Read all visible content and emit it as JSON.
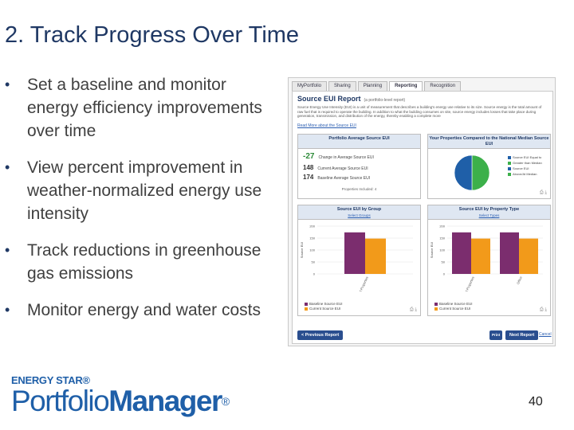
{
  "slide": {
    "title": "2. Track Progress Over Time",
    "bullets": [
      "Set a baseline and monitor energy efficiency improvements over time",
      "View percent improvement in weather-normalized energy use intensity",
      "Track reductions in greenhouse gas emissions",
      "Monitor energy and water costs"
    ],
    "bullet_char": "•",
    "page_number": "40"
  },
  "logo": {
    "top": "ENERGY STAR®",
    "main_a": "Portfolio",
    "main_b": "Manager",
    "reg": "®"
  },
  "screenshot": {
    "tabs": [
      "MyPortfolio",
      "Sharing",
      "Planning",
      "Reporting",
      "Recognition"
    ],
    "active_tab_index": 3,
    "report_title": "Source EUI Report",
    "report_subtitle": "(a portfolio-level report)",
    "description": "Source Energy Use Intensity (EUI) is a unit of measurement that describes a building's energy use relative to its size. Source energy is the total amount of raw fuel that is required to operate the building. In addition to what the building consumes on site, source energy includes losses that take place during generation, transmission, and distribution of the energy, thereby enabling a complete more",
    "link": "Read More about the Source EUI",
    "panel1": {
      "title": "Portfolio Average Source EUI",
      "metrics": [
        {
          "value": "-27",
          "label": "Change in Average Source EUI"
        },
        {
          "value": "148",
          "label": "Current Average Source EUI"
        },
        {
          "value": "174",
          "label": "Baseline Average Source EUI"
        }
      ],
      "footer": "Properties Included: 4"
    },
    "panel2": {
      "title": "Your Properties Compared to the National Median Source EUI",
      "legend": [
        "Source EUI Equal to",
        "Greater than Median",
        "Source EUI",
        "Above/At Median"
      ],
      "colors": {
        "green": "#3cb04a",
        "blue": "#1f5fa8"
      }
    },
    "panel3": {
      "title": "Source EUI by Group",
      "link": "Select Groups",
      "y_label": "Source EUI",
      "ticks": [
        "200",
        "150",
        "100",
        "50",
        "0"
      ],
      "category": "All Properties",
      "legend": [
        "Baseline Source EUI",
        "Current Source EUI"
      ]
    },
    "panel4": {
      "title": "Source EUI by Property Type",
      "link": "Select Types",
      "y_label": "Source EUI",
      "ticks": [
        "200",
        "150",
        "100",
        "50",
        "0"
      ],
      "categories": [
        "All Properties",
        "Office"
      ],
      "legend": [
        "Baseline Source EUI",
        "Current Source EUI"
      ]
    },
    "buttons": {
      "previous": "< Previous Report",
      "print": "Print",
      "next": "Next Report",
      "cancel": "Cancel"
    }
  },
  "chart_data": [
    {
      "type": "pie",
      "title": "Your Properties Compared to the National Median Source EUI",
      "categories": [
        "Source EUI Equal to / Greater than Median",
        "Source EUI Above/At Median"
      ],
      "values": [
        50,
        50
      ],
      "colors": [
        "#3cb04a",
        "#1f5fa8"
      ]
    },
    {
      "type": "bar",
      "title": "Source EUI by Group",
      "ylabel": "Source EUI",
      "categories": [
        "All Properties"
      ],
      "ylim": [
        0,
        200
      ],
      "series": [
        {
          "name": "Baseline Source EUI",
          "values": [
            174
          ],
          "color": "#7b2d6e"
        },
        {
          "name": "Current Source EUI",
          "values": [
            148
          ],
          "color": "#f29a1a"
        }
      ]
    },
    {
      "type": "bar",
      "title": "Source EUI by Property Type",
      "ylabel": "Source EUI",
      "categories": [
        "All Properties",
        "Office"
      ],
      "ylim": [
        0,
        200
      ],
      "series": [
        {
          "name": "Baseline Source EUI",
          "values": [
            174,
            174
          ],
          "color": "#7b2d6e"
        },
        {
          "name": "Current Source EUI",
          "values": [
            148,
            148
          ],
          "color": "#f29a1a"
        }
      ]
    }
  ]
}
